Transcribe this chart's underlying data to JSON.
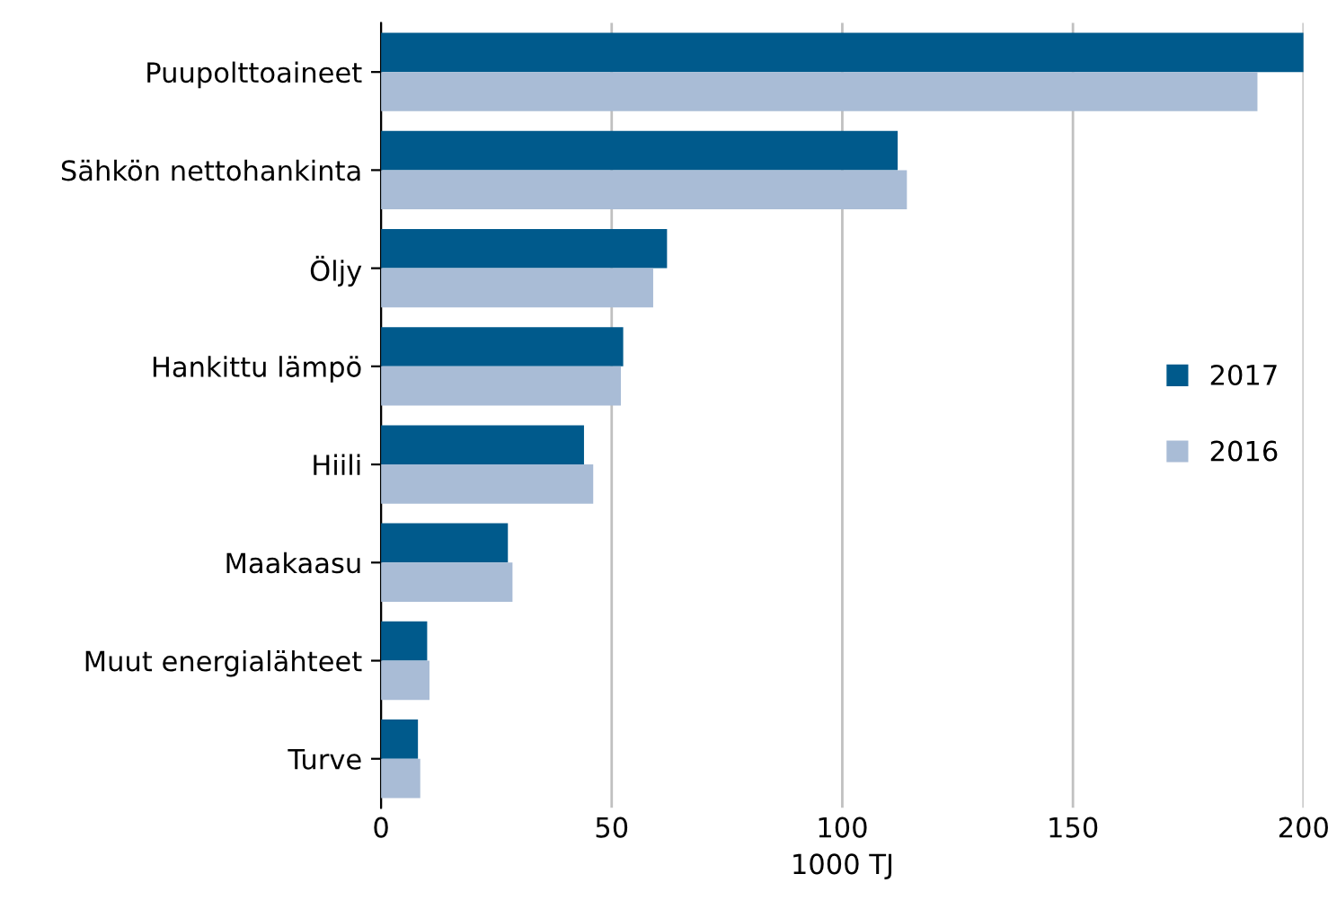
{
  "chart_data": {
    "type": "bar",
    "orientation": "horizontal",
    "xlabel": "1000 TJ",
    "categories": [
      "Puupolttoaineet",
      "Sähkön nettohankinta",
      "Öljy",
      "Hankittu lämpö",
      "Hiili",
      "Maakaasu",
      "Muut energialähteet",
      "Turve"
    ],
    "series": [
      {
        "name": "2017",
        "color": "#005a8c",
        "values": [
          200,
          112,
          62,
          52.5,
          44,
          27.5,
          10,
          8
        ]
      },
      {
        "name": "2016",
        "color": "#a9bcd6",
        "values": [
          190,
          114,
          59,
          52,
          46,
          28.5,
          10.5,
          8.5
        ]
      }
    ],
    "xlim": [
      0,
      200
    ],
    "xticks": [
      0,
      50,
      100,
      150,
      200
    ],
    "grid": "x",
    "legend": "right"
  }
}
